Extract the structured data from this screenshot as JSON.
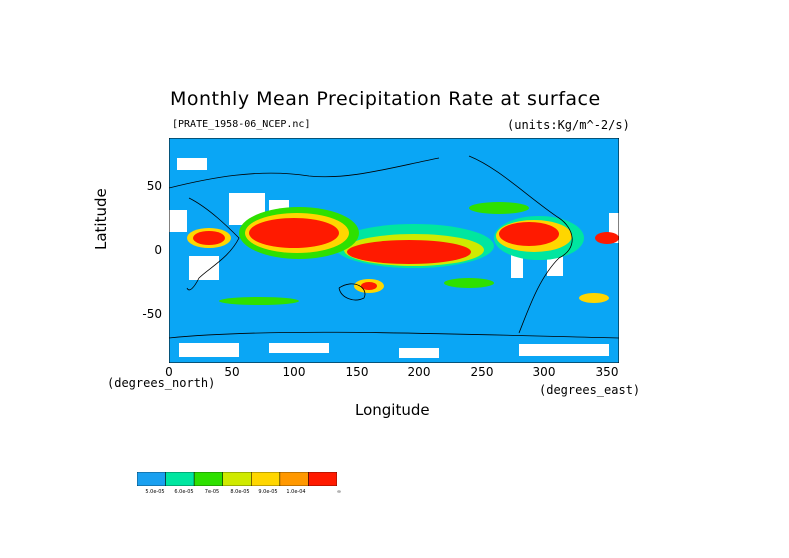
{
  "title": "Monthly Mean Precipitation Rate at surface",
  "file_label": "[PRATE_1958-06_NCEP.nc]",
  "units_label": "(units:Kg/m^-2/s)",
  "axes": {
    "xlabel": "Longitude",
    "ylabel": "Latitude",
    "x_unit_note": "(degrees_east)",
    "y_unit_note": "(degrees_north)",
    "x_ticks": [
      "0",
      "50",
      "100",
      "150",
      "200",
      "250",
      "300",
      "350"
    ],
    "y_ticks": [
      "50",
      "0",
      "-50"
    ]
  },
  "colors": {
    "ocean": "#0aa6f5",
    "land_missing": "#ffffff",
    "coast": "#000000",
    "levels": [
      "#1aa0f0",
      "#00e6a0",
      "#2ee000",
      "#cfea00",
      "#ffd600",
      "#ff9800",
      "#ff1a00"
    ]
  },
  "colorbar": {
    "labels": [
      "5.0e-05",
      "6.0e-05",
      "7e-05",
      "8.0e-05",
      "9.0e-05",
      "1.0e-04",
      "∞"
    ]
  },
  "chart_data": {
    "type": "heatmap",
    "title": "Monthly Mean Precipitation Rate at surface",
    "xlabel": "Longitude",
    "ylabel": "Latitude",
    "xlim": [
      0,
      360
    ],
    "ylim": [
      -90,
      90
    ],
    "grid": false
  }
}
